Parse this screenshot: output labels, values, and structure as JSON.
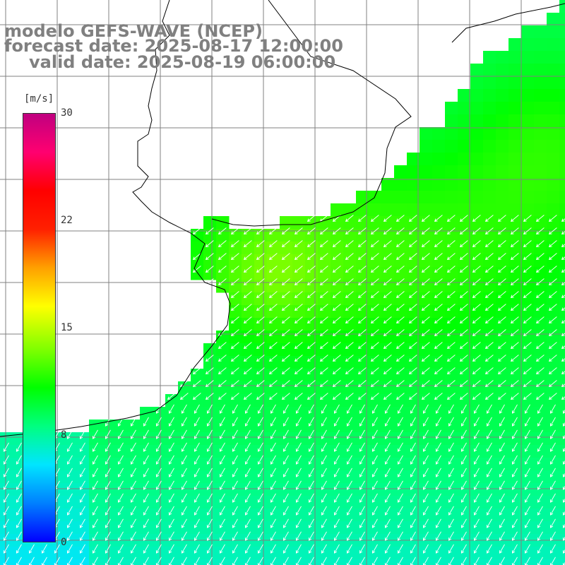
{
  "title": {
    "line1": "modelo GEFS-WAVE (NCEP)",
    "line2": "forecast date: 2025-08-17 12:00:00",
    "line3": "valid date: 2025-08-19 06:00:00"
  },
  "colorbar": {
    "unit": "[m/s]",
    "ticks": [
      "30",
      "22",
      "15",
      "8",
      "0"
    ],
    "min": 0,
    "max": 30,
    "colors": [
      "#0000ff",
      "#0080ff",
      "#00e5ff",
      "#00ff80",
      "#00ff00",
      "#80ff00",
      "#ffff00",
      "#ffa000",
      "#ff2000",
      "#ff0000",
      "#ff0070",
      "#c00080"
    ]
  },
  "map": {
    "field": "wind speed (m/s)",
    "wind_direction": "from north-east",
    "land_color": "#ffffff",
    "grid_color": "#808080",
    "coastline_color": "#000000",
    "arrow_color": "#ffffff"
  }
}
